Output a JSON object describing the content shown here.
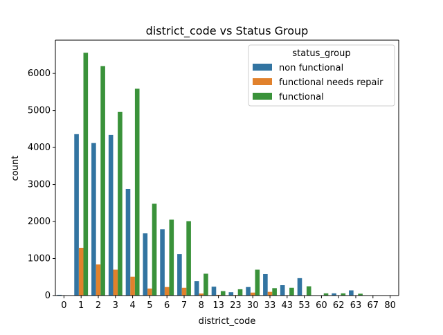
{
  "chart_data": {
    "type": "bar",
    "title": "district_code vs Status Group",
    "xlabel": "district_code",
    "ylabel": "count",
    "categories": [
      "0",
      "1",
      "2",
      "3",
      "4",
      "5",
      "6",
      "7",
      "8",
      "13",
      "23",
      "30",
      "33",
      "43",
      "53",
      "60",
      "62",
      "63",
      "67",
      "80"
    ],
    "ylim": [
      0,
      6900
    ],
    "yticks": [
      0,
      1000,
      2000,
      3000,
      4000,
      5000,
      6000
    ],
    "grid": false,
    "legend": {
      "title": "status_group",
      "placement": "top-right"
    },
    "series": [
      {
        "name": "non functional",
        "color": "#3274a1",
        "values": [
          20,
          4360,
          4120,
          4340,
          2880,
          1680,
          1790,
          1120,
          390,
          240,
          90,
          230,
          580,
          280,
          470,
          0,
          60,
          140,
          0,
          0
        ]
      },
      {
        "name": "functional needs repair",
        "color": "#e1812c",
        "values": [
          0,
          1290,
          840,
          700,
          510,
          190,
          230,
          210,
          55,
          20,
          15,
          80,
          100,
          10,
          5,
          0,
          0,
          0,
          0,
          0
        ]
      },
      {
        "name": "functional",
        "color": "#3a923a",
        "values": [
          0,
          6560,
          6200,
          4960,
          5590,
          2480,
          2050,
          2010,
          590,
          120,
          170,
          700,
          200,
          210,
          250,
          60,
          60,
          50,
          0,
          0
        ]
      }
    ]
  }
}
